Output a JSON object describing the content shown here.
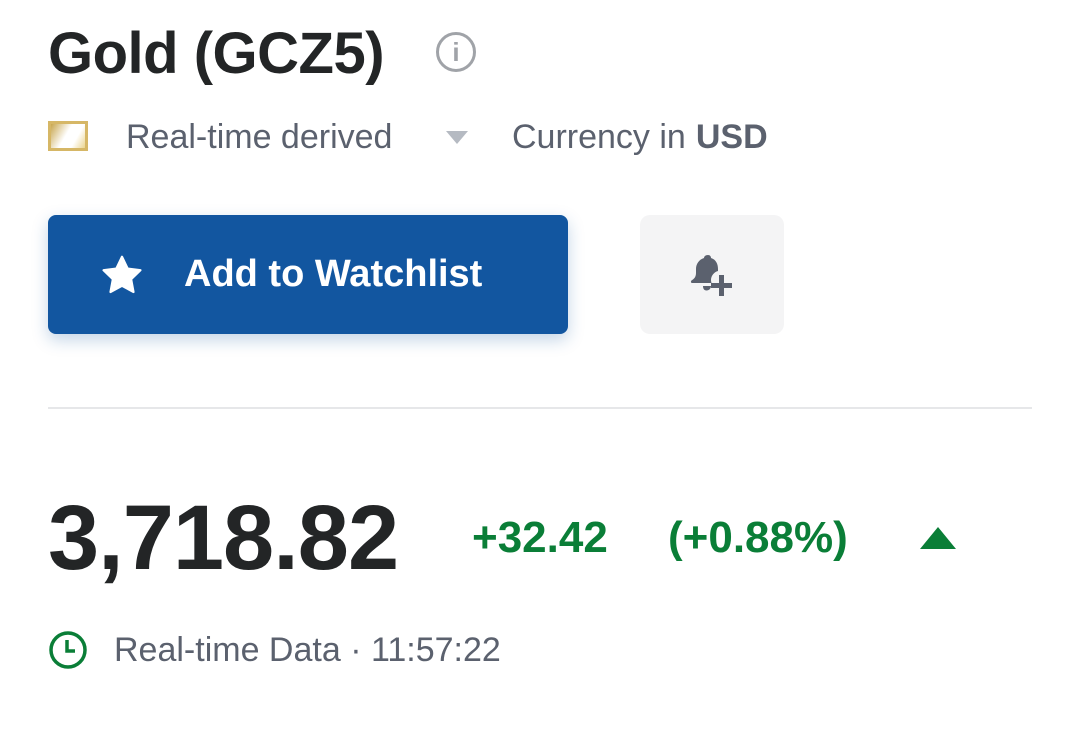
{
  "header": {
    "title": "Gold (GCZ5)",
    "info_icon": "info-icon"
  },
  "meta": {
    "data_source": "Real-time derived",
    "currency_label": "Currency in",
    "currency": "USD"
  },
  "actions": {
    "watchlist_label": "Add to Watchlist",
    "watchlist_icon": "star-icon",
    "alert_icon": "bell-plus-icon"
  },
  "quote": {
    "price": "3,718.82",
    "change": "+32.42",
    "change_percent": "(+0.88%)",
    "direction": "up",
    "status": "Real-time Data · 11:57:22"
  },
  "colors": {
    "accent": "#1256a0",
    "positive": "#0a7e37",
    "muted_text": "#5b616e"
  }
}
